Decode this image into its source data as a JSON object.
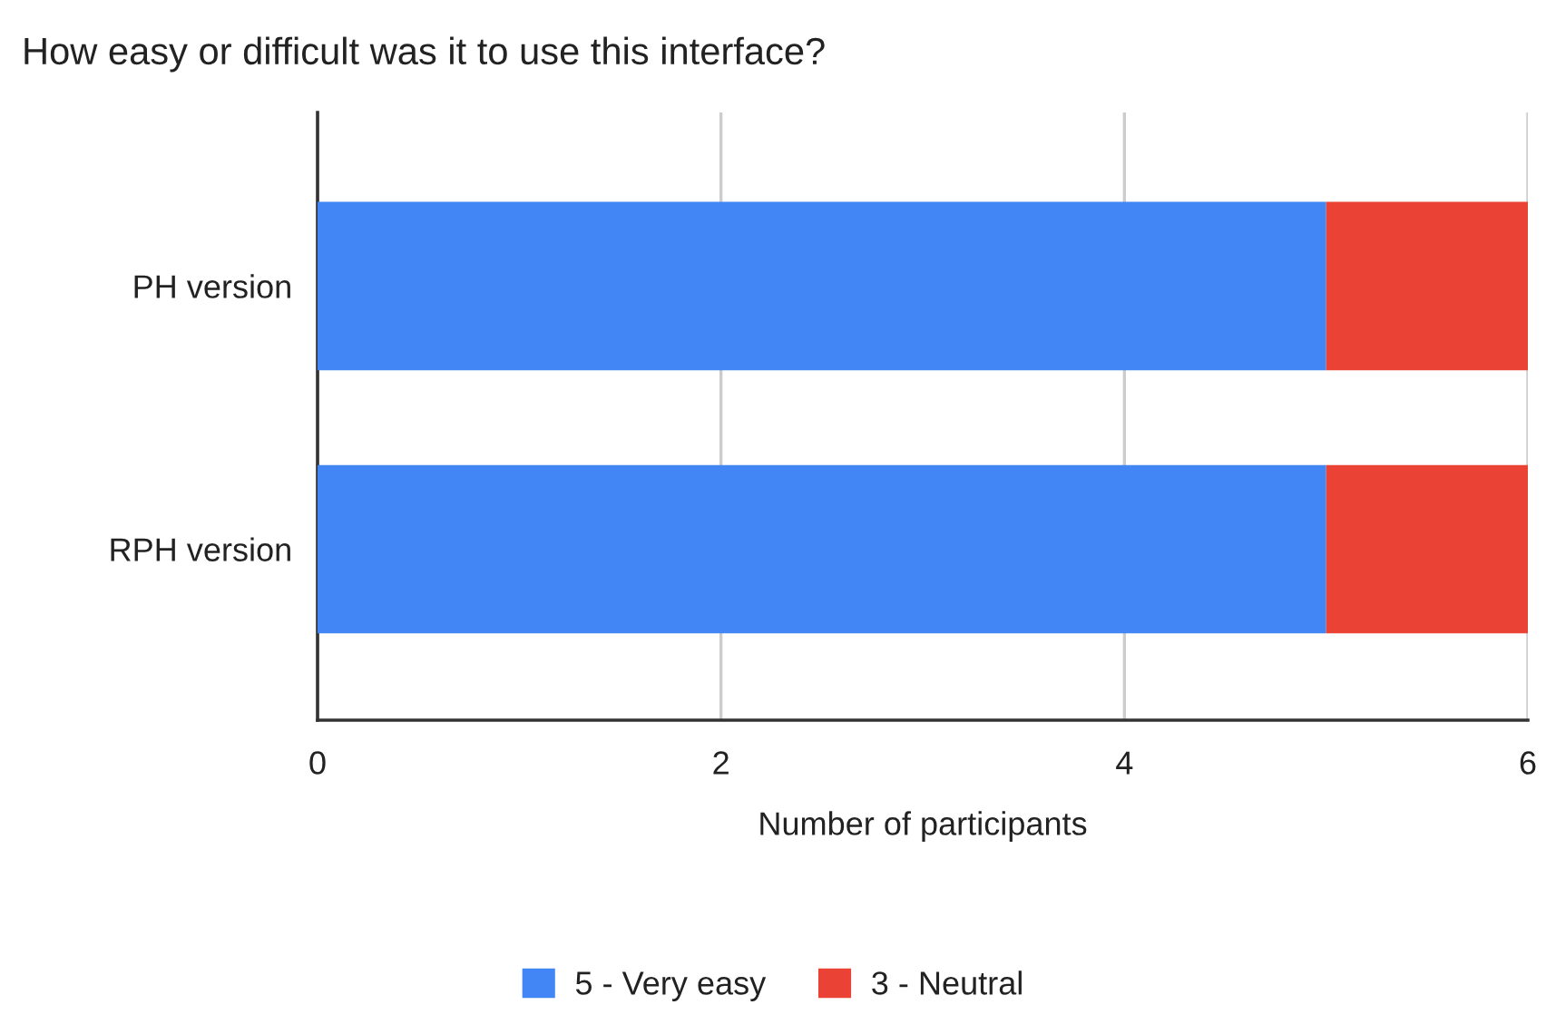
{
  "chart_data": {
    "type": "bar",
    "orientation": "horizontal",
    "stacked": true,
    "title": "How easy or difficult was it to use this interface?",
    "xlabel": "Number of participants",
    "categories": [
      "PH version",
      "RPH version"
    ],
    "series": [
      {
        "name": "5 - Very easy",
        "color": "#4285f4",
        "values": [
          5,
          5
        ]
      },
      {
        "name": "3 - Neutral",
        "color": "#ea4335",
        "values": [
          1,
          1
        ]
      }
    ],
    "xlim": [
      0,
      6
    ],
    "xticks": [
      0,
      2,
      4,
      6
    ],
    "grid": "x",
    "legend": "bottom"
  }
}
